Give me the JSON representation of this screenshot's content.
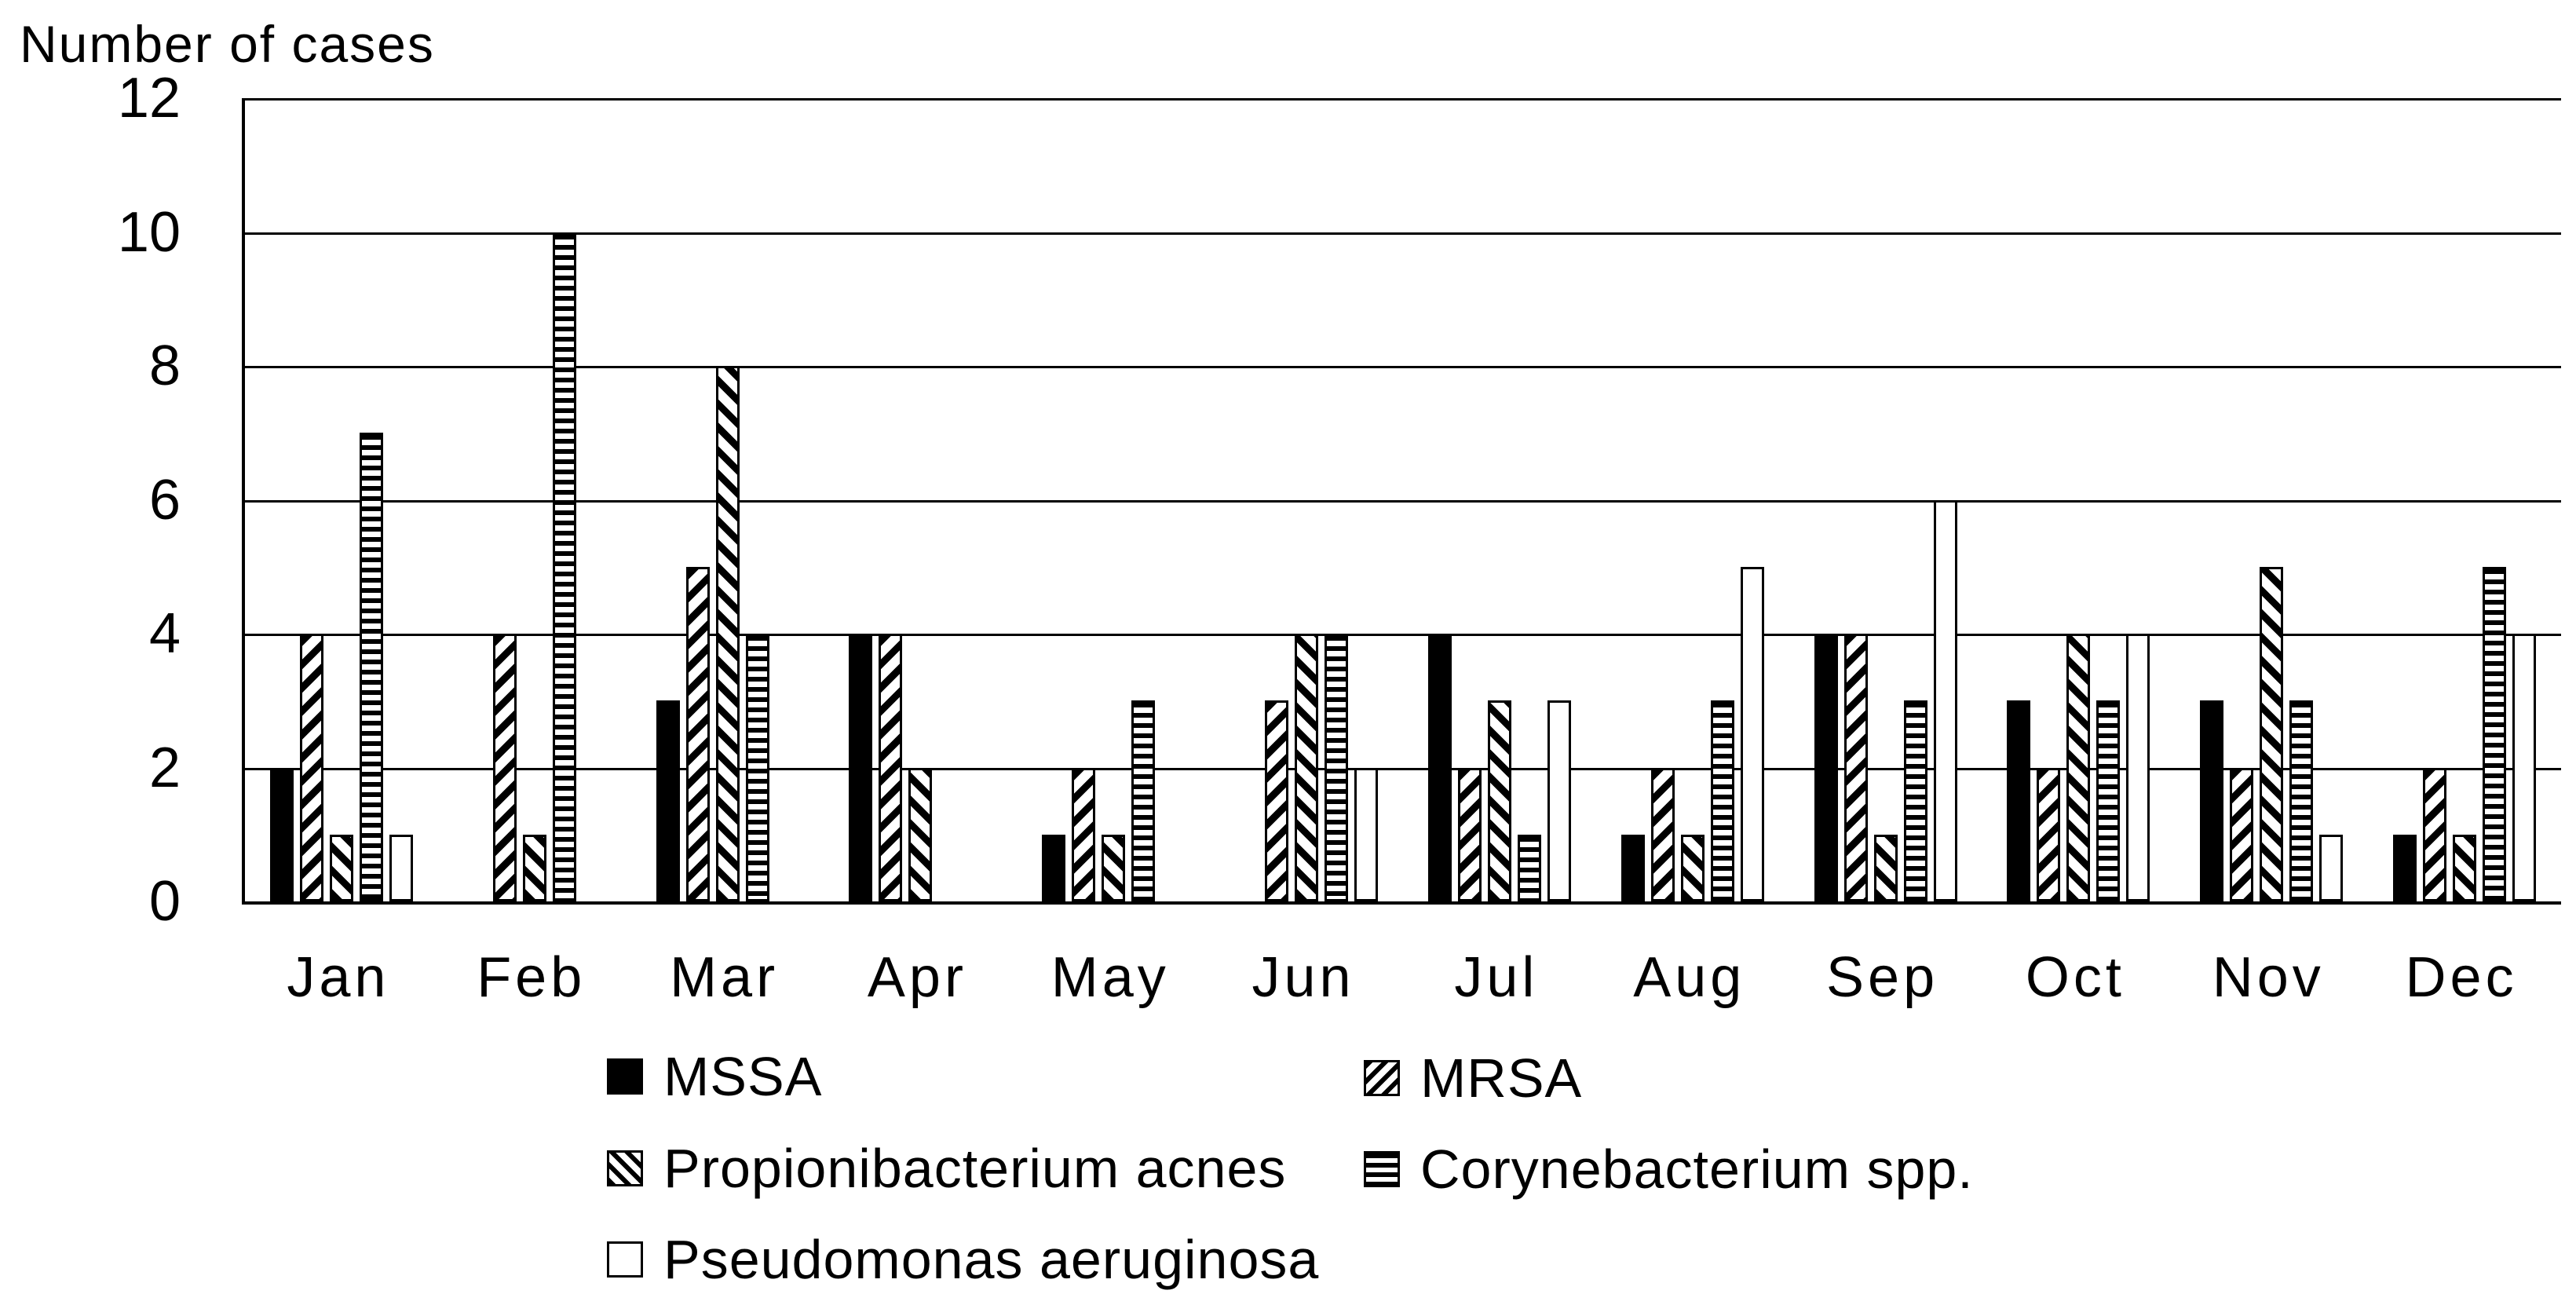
{
  "title": "Number of cases",
  "colors": {
    "foreground": "#000000",
    "background": "#ffffff"
  },
  "chart_data": {
    "type": "bar",
    "title": "Number of cases",
    "ylabel": "Number of cases",
    "xlabel": "",
    "ylim": [
      0,
      12
    ],
    "yticks": [
      0,
      2,
      4,
      6,
      8,
      10,
      12
    ],
    "grid": true,
    "legend_position": "bottom",
    "categories": [
      "Jan",
      "Feb",
      "Mar",
      "Apr",
      "May",
      "Jun",
      "Jul",
      "Aug",
      "Sep",
      "Oct",
      "Nov",
      "Dec"
    ],
    "series": [
      {
        "name": "MSSA",
        "pattern": "solid",
        "values": [
          2,
          0,
          3,
          4,
          1,
          0,
          4,
          1,
          4,
          3,
          3,
          1
        ]
      },
      {
        "name": "MRSA",
        "pattern": "diagonal-down",
        "values": [
          4,
          4,
          5,
          4,
          2,
          3,
          2,
          2,
          4,
          2,
          2,
          2
        ]
      },
      {
        "name": "Propionibacterium acnes",
        "pattern": "diagonal-up",
        "values": [
          1,
          1,
          8,
          2,
          1,
          4,
          3,
          1,
          1,
          4,
          5,
          1
        ]
      },
      {
        "name": "Corynebacterium spp.",
        "pattern": "horizontal",
        "values": [
          7,
          10,
          4,
          0,
          3,
          4,
          1,
          3,
          3,
          3,
          3,
          5
        ]
      },
      {
        "name": "Pseudomonas aeruginosa",
        "pattern": "outline",
        "values": [
          1,
          0,
          0,
          0,
          0,
          2,
          3,
          5,
          6,
          4,
          1,
          4
        ]
      }
    ]
  }
}
